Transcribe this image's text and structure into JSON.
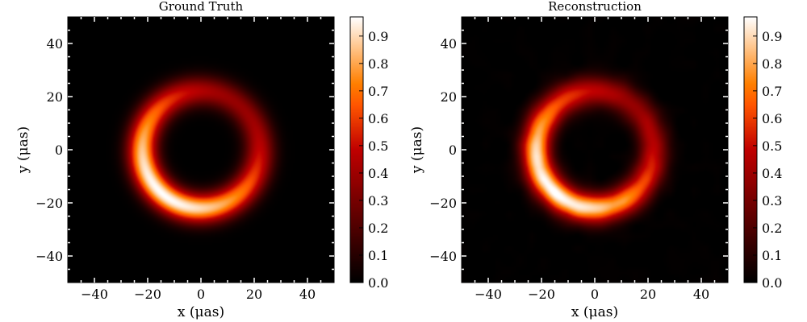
{
  "chart_data": [
    {
      "type": "heatmap",
      "title": "Ground Truth",
      "xlabel": "x (μas)",
      "ylabel": "y (μas)",
      "xlim": [
        -50,
        50
      ],
      "ylim": [
        -50,
        50
      ],
      "xticks": [
        -40,
        -20,
        0,
        20,
        40
      ],
      "yticks": [
        -40,
        -20,
        0,
        20,
        40
      ],
      "xtick_labels": [
        "−40",
        "−20",
        "0",
        "20",
        "40"
      ],
      "ytick_labels": [
        "−40",
        "−20",
        "0",
        "20",
        "40"
      ],
      "colormap": "gist_heat",
      "image": {
        "shape": "crescent-ring",
        "ring_center": [
          0,
          0
        ],
        "ring_radius": 22,
        "ring_width": 5.5,
        "brightness_peak_angle_deg": 230,
        "brightness_min": 0.38,
        "brightness_max": 0.97,
        "noise": 0
      },
      "colorbar": {
        "range": [
          0,
          0.97
        ],
        "ticks": [
          0.0,
          0.1,
          0.2,
          0.3,
          0.4,
          0.5,
          0.6,
          0.7,
          0.8,
          0.9
        ],
        "tick_labels": [
          "0.0",
          "0.1",
          "0.2",
          "0.3",
          "0.4",
          "0.5",
          "0.6",
          "0.7",
          "0.8",
          "0.9"
        ]
      }
    },
    {
      "type": "heatmap",
      "title": "Reconstruction",
      "xlabel": "x (μas)",
      "ylabel": "y (μas)",
      "xlim": [
        -50,
        50
      ],
      "ylim": [
        -50,
        50
      ],
      "xticks": [
        -40,
        -20,
        0,
        20,
        40
      ],
      "yticks": [
        -40,
        -20,
        0,
        20,
        40
      ],
      "xtick_labels": [
        "−40",
        "−20",
        "0",
        "20",
        "40"
      ],
      "ytick_labels": [
        "−40",
        "−20",
        "0",
        "20",
        "40"
      ],
      "colormap": "gist_heat",
      "image": {
        "shape": "crescent-ring",
        "ring_center": [
          0,
          0
        ],
        "ring_radius": 22,
        "ring_width": 5.5,
        "brightness_peak_angle_deg": 225,
        "brightness_min": 0.4,
        "brightness_max": 0.97,
        "noise": 0.04
      },
      "colorbar": {
        "range": [
          0,
          0.97
        ],
        "ticks": [
          0.0,
          0.1,
          0.2,
          0.3,
          0.4,
          0.5,
          0.6,
          0.7,
          0.8,
          0.9
        ],
        "tick_labels": [
          "0.0",
          "0.1",
          "0.2",
          "0.3",
          "0.4",
          "0.5",
          "0.6",
          "0.7",
          "0.8",
          "0.9"
        ]
      }
    }
  ]
}
